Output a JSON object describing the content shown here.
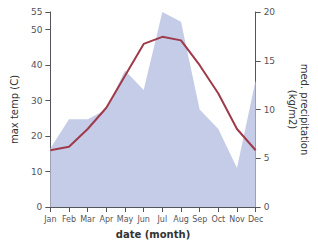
{
  "chart_data": {
    "type": "line",
    "categories": [
      "Jan",
      "Feb",
      "Mar",
      "Apr",
      "May",
      "Jun",
      "Jul",
      "Aug",
      "Sep",
      "Oct",
      "Nov",
      "Dec"
    ],
    "series": [
      {
        "type": "area",
        "axis": "y2",
        "color": "#c5cce8",
        "values": [
          6,
          9,
          9,
          10,
          14,
          12,
          20,
          19,
          10,
          8,
          4,
          13
        ]
      },
      {
        "type": "line",
        "color": "#9e3a4a",
        "values": [
          16,
          17,
          22,
          28,
          37,
          46,
          48,
          47,
          40,
          32,
          22,
          16
        ]
      }
    ],
    "xlabel": "date (month)",
    "ylabel": "max temp (C)",
    "y2label": "med. precipitation\n(kg/m2)",
    "ylim": [
      0,
      55
    ],
    "yticks": [
      0,
      10,
      20,
      30,
      40,
      50
    ],
    "y2lim": [
      0,
      20
    ],
    "y2ticks": [
      0,
      5,
      10,
      15,
      20
    ],
    "grid": false
  }
}
